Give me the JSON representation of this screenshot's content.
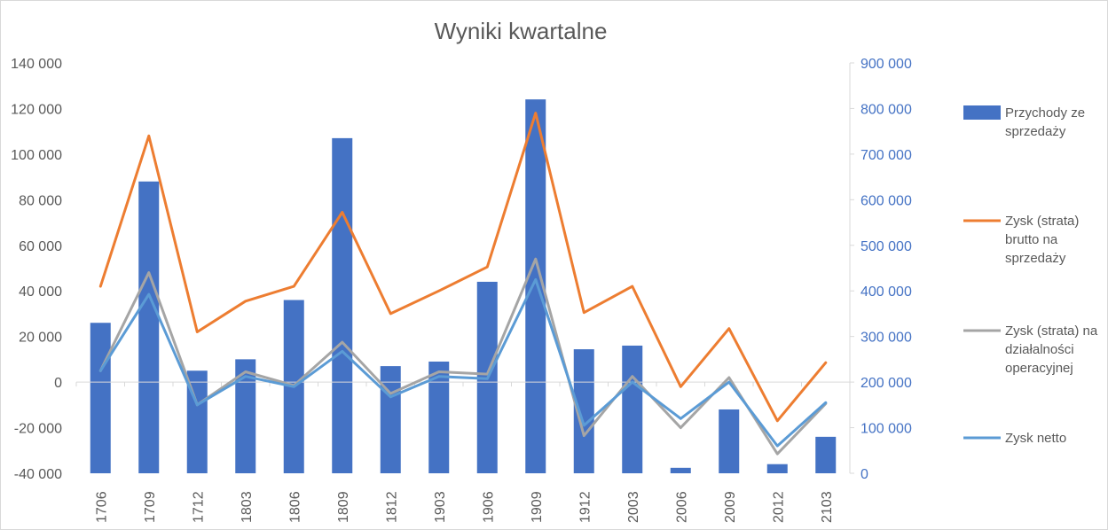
{
  "chart_data": {
    "type": "bar",
    "title": "Wyniki kwartalne",
    "categories": [
      "1706",
      "1709",
      "1712",
      "1803",
      "1806",
      "1809",
      "1812",
      "1903",
      "1906",
      "1909",
      "1912",
      "2003",
      "2006",
      "2009",
      "2012",
      "2103"
    ],
    "y_left": {
      "ylim": [
        -40000,
        140000
      ],
      "ticks": [
        -40000,
        -20000,
        0,
        20000,
        40000,
        60000,
        80000,
        100000,
        120000,
        140000
      ],
      "tick_labels": [
        "-40 000",
        "-20 000",
        "0",
        "20 000",
        "40 000",
        "60 000",
        "80 000",
        "100 000",
        "120 000",
        "140 000"
      ]
    },
    "y_right": {
      "ylim": [
        0,
        900000
      ],
      "ticks": [
        0,
        100000,
        200000,
        300000,
        400000,
        500000,
        600000,
        700000,
        800000,
        900000
      ],
      "tick_labels": [
        "0",
        "100 000",
        "200 000",
        "300 000",
        "400 000",
        "500 000",
        "600 000",
        "700 000",
        "800 000",
        "900 000"
      ]
    },
    "series": [
      {
        "name": "Przychody ze sprzedaży",
        "type": "bar",
        "axis": "right",
        "color": "#4472c4",
        "values": [
          330000,
          640000,
          225000,
          250000,
          380000,
          735000,
          235000,
          245000,
          420000,
          820000,
          272000,
          280000,
          12000,
          140000,
          20000,
          80000
        ]
      },
      {
        "name": "Zysk (strata) brutto na sprzedaży",
        "type": "line",
        "axis": "left",
        "color": "#ed7d31",
        "values": [
          42000,
          108000,
          22000,
          35500,
          42000,
          74500,
          30000,
          40000,
          50500,
          118000,
          30500,
          42000,
          -2000,
          23500,
          -17000,
          8500
        ]
      },
      {
        "name": "Zysk (strata) na działalności operacyjnej",
        "type": "line",
        "axis": "left",
        "color": "#a5a5a5",
        "values": [
          5000,
          48000,
          -10000,
          4500,
          -1500,
          17500,
          -5000,
          4500,
          3500,
          54000,
          -23500,
          2500,
          -20000,
          2000,
          -31500,
          -9500
        ]
      },
      {
        "name": "Zysk netto",
        "type": "line",
        "axis": "left",
        "color": "#5b9bd5",
        "values": [
          5000,
          38500,
          -10000,
          2500,
          -2000,
          13500,
          -6500,
          2500,
          1500,
          45000,
          -19000,
          0,
          -16000,
          0,
          -28000,
          -9000
        ]
      }
    ],
    "legend": "right",
    "grid": false
  }
}
